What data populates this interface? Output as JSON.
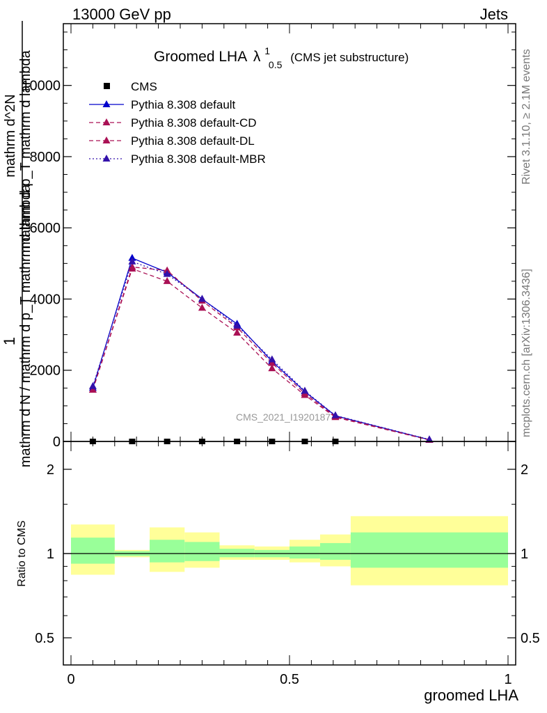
{
  "header": {
    "left": "13000 GeV pp",
    "right": "Jets"
  },
  "side_labels": {
    "rivet": "Rivet 3.1.10, ≥ 2.1M events",
    "mcplots": "mcplots.cern.ch [arXiv:1306.3436]"
  },
  "chart_data": {
    "type": "line",
    "title": "Groomed LHA",
    "title_symbol": "λ",
    "title_sup": "1",
    "title_sub": "0.5",
    "title_note": "(CMS jet substructure)",
    "watermark": "CMS_2021_I1920187",
    "ylabel_main": "mathrm d N / mathrm d p_T mathrm d lambda",
    "ylabel_main_parts": [
      "1",
      "mathrm dN / mathrm d p_T",
      "mathrm d^2N",
      "mathrm d p_T mathrm d lambda"
    ],
    "xlabel": "groomed LHA",
    "ylabel_ratio": "Ratio to CMS",
    "xlim": [
      0,
      1
    ],
    "ylim": [
      0,
      11500
    ],
    "yticks": [
      0,
      2000,
      4000,
      6000,
      8000,
      10000
    ],
    "ytick_labels": [
      "0",
      "2000",
      "4000",
      "6000",
      "8000",
      "10000"
    ],
    "xticks": [
      0,
      0.5,
      1
    ],
    "xtick_labels": [
      "0",
      "0.5",
      "1"
    ],
    "ratio_ylim": [
      0.4,
      2.4
    ],
    "ratio_yticks": [
      0.5,
      1,
      2
    ],
    "ratio_ytick_labels": [
      "0.5",
      "1",
      "2"
    ],
    "x": [
      0.05,
      0.14,
      0.22,
      0.3,
      0.38,
      0.46,
      0.535,
      0.605,
      0.82
    ],
    "cms": {
      "name": "CMS",
      "x": [
        0.05,
        0.14,
        0.22,
        0.3,
        0.38,
        0.46,
        0.535,
        0.605
      ],
      "values": [
        0,
        0,
        0,
        0,
        0,
        0,
        0,
        0
      ]
    },
    "series": [
      {
        "name": "Pythia 8.308 default",
        "color": "#0000cc",
        "style": "solid",
        "values": [
          1500,
          5150,
          4750,
          4000,
          3300,
          2250,
          1400,
          720,
          50
        ]
      },
      {
        "name": "Pythia 8.308 default-CD",
        "color": "#aa1155",
        "style": "dashed",
        "values": [
          1450,
          4900,
          4800,
          3950,
          3200,
          2200,
          1350,
          700,
          45
        ]
      },
      {
        "name": "Pythia 8.308 default-DL",
        "color": "#aa1155",
        "style": "dashed",
        "values": [
          1450,
          4850,
          4500,
          3750,
          3050,
          2050,
          1300,
          680,
          40
        ]
      },
      {
        "name": "Pythia 8.308 default-MBR",
        "color": "#3311aa",
        "style": "dotted",
        "values": [
          1550,
          5050,
          4700,
          4000,
          3250,
          2300,
          1420,
          730,
          55
        ]
      }
    ],
    "ratio_bands": [
      {
        "xlo": 0.0,
        "xhi": 0.1,
        "yellow": [
          0.84,
          1.27
        ],
        "green": [
          0.92,
          1.14
        ]
      },
      {
        "xlo": 0.1,
        "xhi": 0.18,
        "yellow": [
          0.97,
          1.03
        ],
        "green": [
          0.98,
          1.02
        ]
      },
      {
        "xlo": 0.18,
        "xhi": 0.26,
        "yellow": [
          0.86,
          1.24
        ],
        "green": [
          0.93,
          1.12
        ]
      },
      {
        "xlo": 0.26,
        "xhi": 0.34,
        "yellow": [
          0.89,
          1.19
        ],
        "green": [
          0.94,
          1.1
        ]
      },
      {
        "xlo": 0.34,
        "xhi": 0.42,
        "yellow": [
          0.95,
          1.07
        ],
        "green": [
          0.97,
          1.04
        ]
      },
      {
        "xlo": 0.42,
        "xhi": 0.5,
        "yellow": [
          0.95,
          1.06
        ],
        "green": [
          0.97,
          1.03
        ]
      },
      {
        "xlo": 0.5,
        "xhi": 0.57,
        "yellow": [
          0.93,
          1.12
        ],
        "green": [
          0.96,
          1.06
        ]
      },
      {
        "xlo": 0.57,
        "xhi": 0.64,
        "yellow": [
          0.9,
          1.17
        ],
        "green": [
          0.95,
          1.09
        ]
      },
      {
        "xlo": 0.64,
        "xhi": 1.0,
        "yellow": [
          0.77,
          1.36
        ],
        "green": [
          0.89,
          1.19
        ]
      }
    ]
  }
}
